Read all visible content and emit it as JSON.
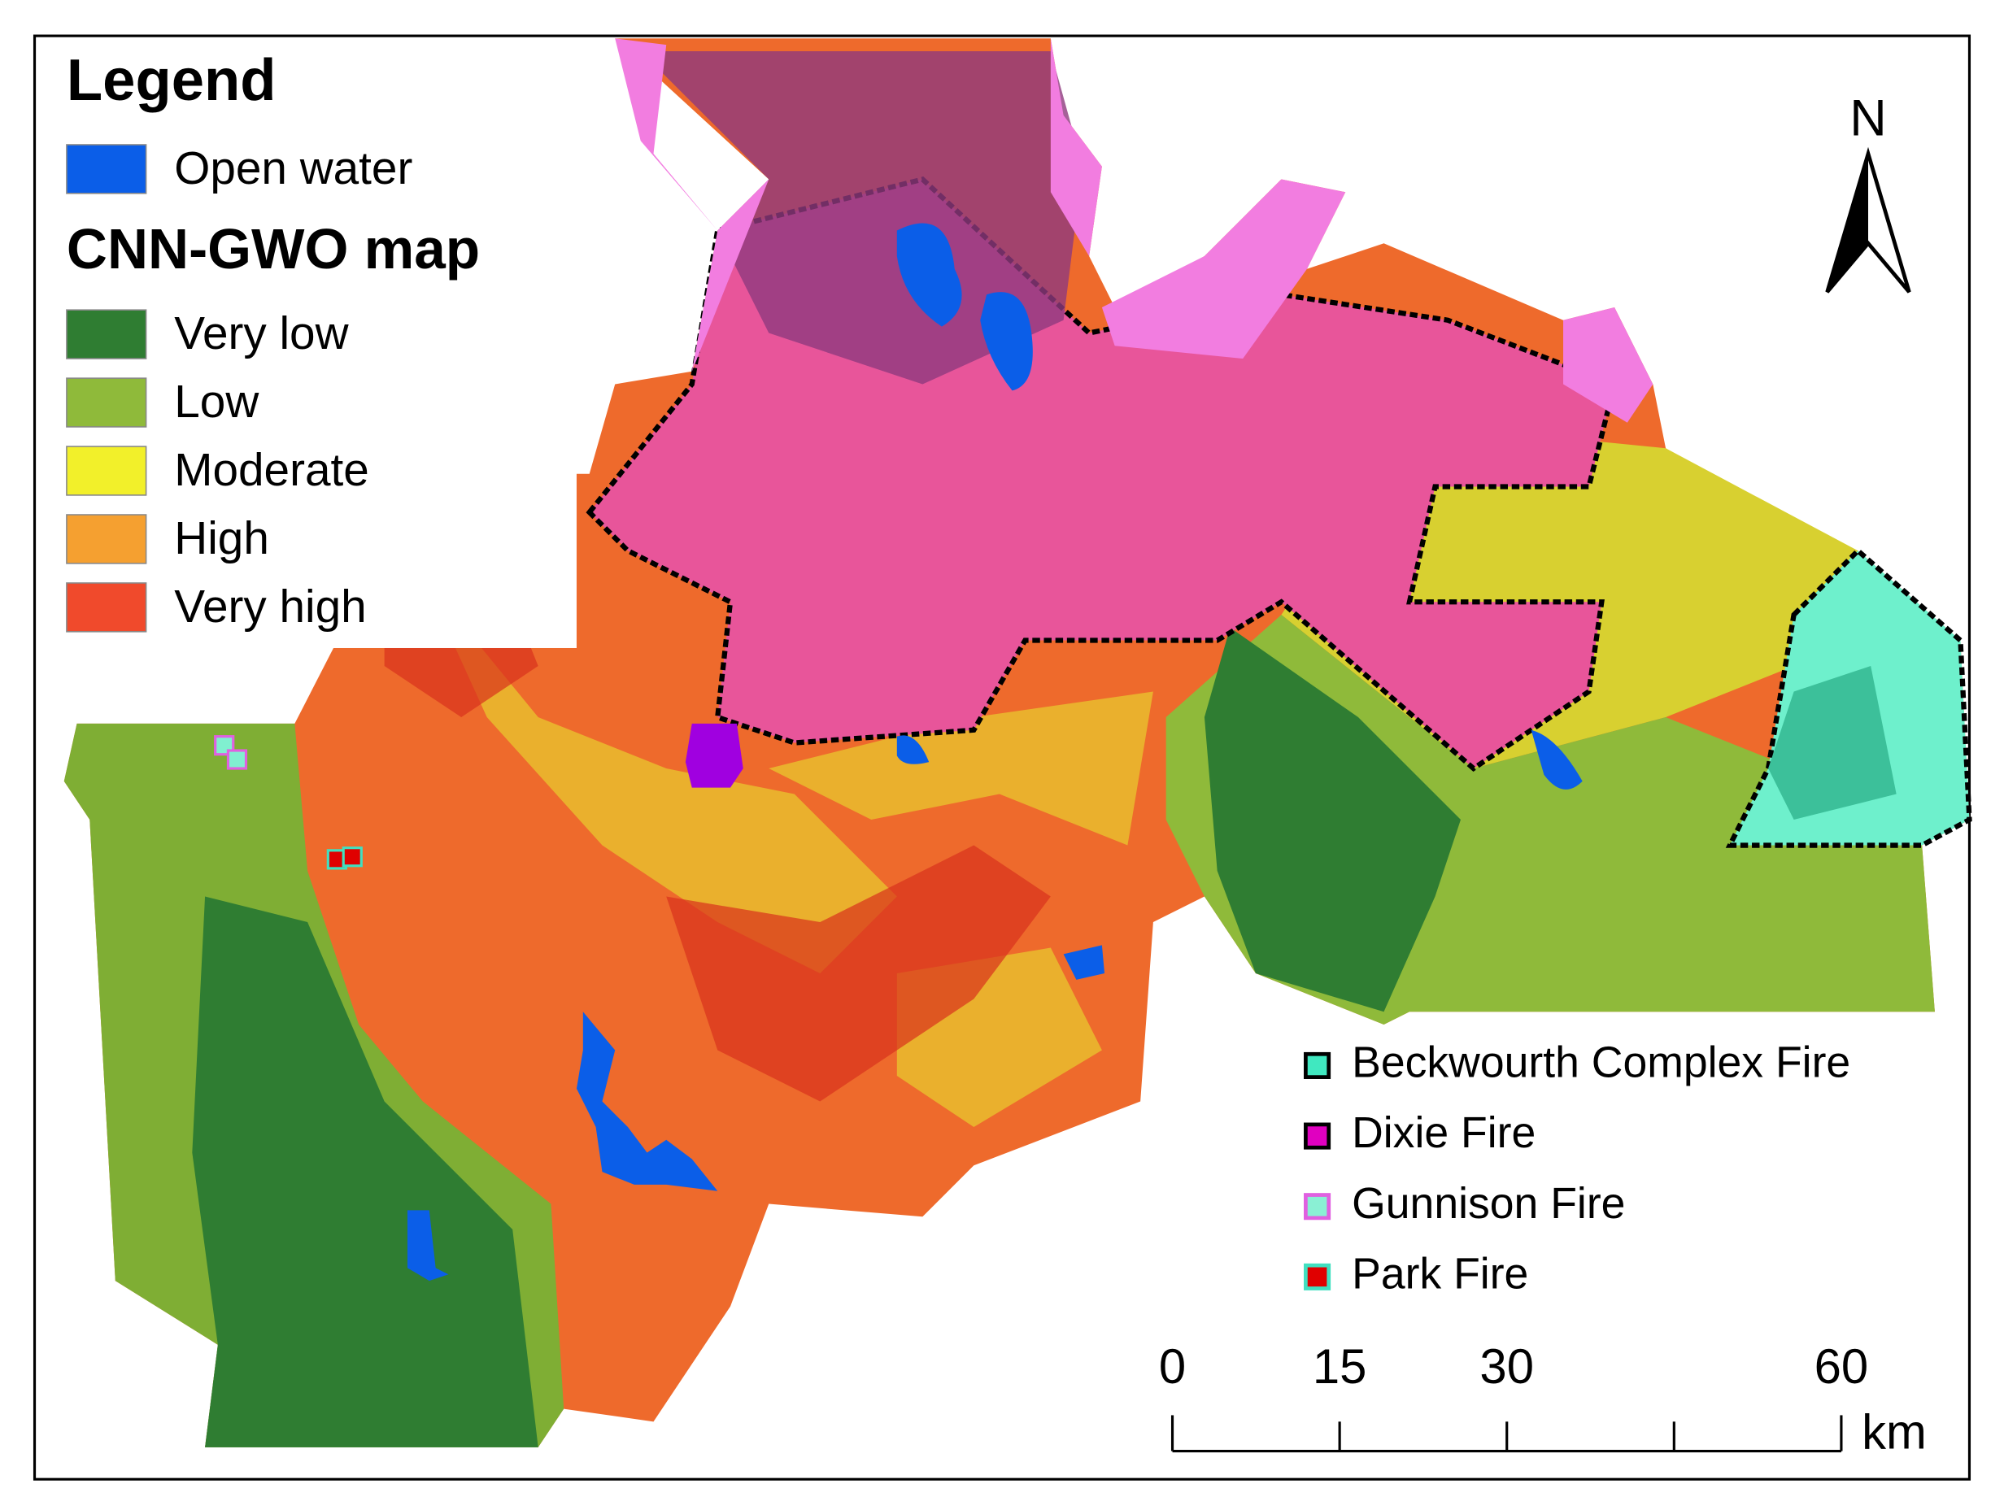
{
  "legend": {
    "title": "Legend",
    "items": [
      {
        "label": "Open water",
        "color": "#0b5ee8"
      }
    ],
    "map_title": "CNN-GWO map",
    "classes": [
      {
        "label": "Very low",
        "color": "#2f7d32"
      },
      {
        "label": "Low",
        "color": "#8fba3a"
      },
      {
        "label": "Moderate",
        "color": "#f2f02a"
      },
      {
        "label": "High",
        "color": "#f5a030"
      },
      {
        "label": "Very high",
        "color": "#f04a2c"
      }
    ]
  },
  "fires": [
    {
      "label": "Beckwourth Complex Fire",
      "fill": "#40e8c0",
      "stroke": "#000000"
    },
    {
      "label": "Dixie Fire",
      "fill": "#e000c0",
      "stroke": "#000000"
    },
    {
      "label": "Gunnison Fire",
      "fill": "#8af0d4",
      "stroke": "#e060e0"
    },
    {
      "label": "Park Fire",
      "fill": "#e00000",
      "stroke": "#40e0c0"
    }
  ],
  "north": "N",
  "scale": {
    "ticks": [
      0,
      15,
      30,
      60
    ],
    "unit": "km"
  }
}
